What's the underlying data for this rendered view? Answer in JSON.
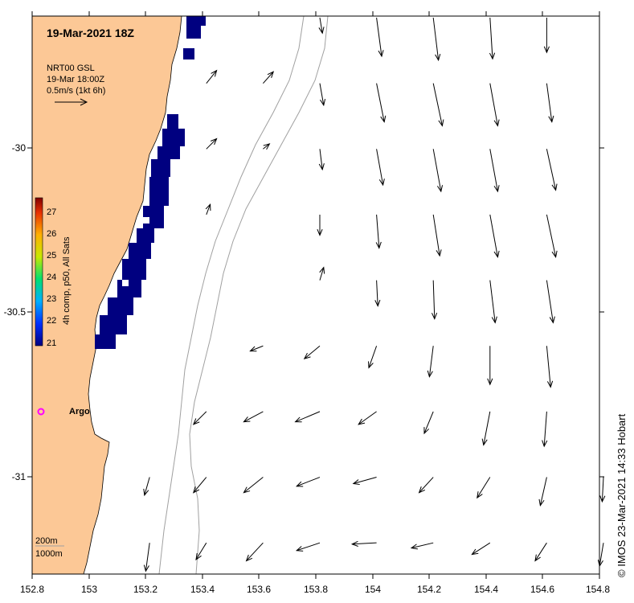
{
  "map": {
    "title": "19-Mar-2021 18Z",
    "product_line1": "NRT00 GSL",
    "product_line2": "19-Mar 18:00Z",
    "scale_label": "0.5m/s (1kt 6h)",
    "colorbar_label": "4h comp, p50, All Sats",
    "colorbar_ticks": [
      "27",
      "26",
      "25",
      "24",
      "23",
      "22",
      "21"
    ],
    "x_ticks": [
      "152.8",
      "153",
      "153.2",
      "153.4",
      "153.6",
      "153.8",
      "154",
      "154.2",
      "154.4",
      "154.6",
      "154.8"
    ],
    "y_ticks": [
      "-30",
      "-30.5",
      "-31"
    ],
    "argo_label": "Argo",
    "depth_label_200": "200m",
    "depth_label_1000": "1000m",
    "credit": "© IMOS 23-Mar-2021 14:33 Hobart",
    "colors": {
      "land": "#fcc896",
      "sst_low": "#000080",
      "argo": "#ff00ff",
      "contour": "#a0a0a0"
    }
  },
  "chart_data": {
    "type": "vector-field-map",
    "lon_range": [
      152.8,
      154.8
    ],
    "lat_range": [
      -31.3,
      -29.6
    ],
    "sst_colorbar_range": [
      21,
      27
    ],
    "argo_float": {
      "lon": 152.83,
      "lat": -30.81
    },
    "current_vectors_ms": [
      {
        "lon": 153.8,
        "lat": -29.6,
        "u": 0.02,
        "v": -0.12
      },
      {
        "lon": 154.0,
        "lat": -29.6,
        "u": 0.04,
        "v": -0.3
      },
      {
        "lon": 154.2,
        "lat": -29.6,
        "u": 0.04,
        "v": -0.33
      },
      {
        "lon": 154.4,
        "lat": -29.6,
        "u": 0.02,
        "v": -0.32
      },
      {
        "lon": 154.6,
        "lat": -29.6,
        "u": 0.0,
        "v": -0.27
      },
      {
        "lon": 153.4,
        "lat": -29.8,
        "u": 0.08,
        "v": 0.1
      },
      {
        "lon": 153.6,
        "lat": -29.8,
        "u": 0.08,
        "v": 0.09
      },
      {
        "lon": 153.8,
        "lat": -29.8,
        "u": 0.03,
        "v": -0.17
      },
      {
        "lon": 154.0,
        "lat": -29.8,
        "u": 0.06,
        "v": -0.3
      },
      {
        "lon": 154.2,
        "lat": -29.8,
        "u": 0.07,
        "v": -0.33
      },
      {
        "lon": 154.4,
        "lat": -29.8,
        "u": 0.06,
        "v": -0.33
      },
      {
        "lon": 154.6,
        "lat": -29.8,
        "u": 0.04,
        "v": -0.3
      },
      {
        "lon": 153.4,
        "lat": -30.0,
        "u": 0.08,
        "v": 0.08
      },
      {
        "lon": 153.6,
        "lat": -30.0,
        "u": 0.05,
        "v": 0.04
      },
      {
        "lon": 153.8,
        "lat": -30.0,
        "u": 0.02,
        "v": -0.16
      },
      {
        "lon": 154.0,
        "lat": -30.0,
        "u": 0.05,
        "v": -0.28
      },
      {
        "lon": 154.2,
        "lat": -30.0,
        "u": 0.06,
        "v": -0.33
      },
      {
        "lon": 154.4,
        "lat": -30.0,
        "u": 0.06,
        "v": -0.33
      },
      {
        "lon": 154.6,
        "lat": -30.0,
        "u": 0.07,
        "v": -0.32
      },
      {
        "lon": 153.4,
        "lat": -30.2,
        "u": 0.03,
        "v": 0.08
      },
      {
        "lon": 153.8,
        "lat": -30.2,
        "u": 0.0,
        "v": -0.16
      },
      {
        "lon": 154.0,
        "lat": -30.2,
        "u": 0.02,
        "v": -0.26
      },
      {
        "lon": 154.2,
        "lat": -30.2,
        "u": 0.05,
        "v": -0.32
      },
      {
        "lon": 154.4,
        "lat": -30.2,
        "u": 0.06,
        "v": -0.33
      },
      {
        "lon": 154.6,
        "lat": -30.2,
        "u": 0.07,
        "v": -0.33
      },
      {
        "lon": 153.8,
        "lat": -30.4,
        "u": 0.03,
        "v": 0.1
      },
      {
        "lon": 154.0,
        "lat": -30.4,
        "u": 0.01,
        "v": -0.2
      },
      {
        "lon": 154.2,
        "lat": -30.4,
        "u": 0.01,
        "v": -0.3
      },
      {
        "lon": 154.4,
        "lat": -30.4,
        "u": 0.04,
        "v": -0.33
      },
      {
        "lon": 154.6,
        "lat": -30.4,
        "u": 0.05,
        "v": -0.33
      },
      {
        "lon": 153.6,
        "lat": -30.6,
        "u": -0.1,
        "v": -0.04
      },
      {
        "lon": 153.8,
        "lat": -30.6,
        "u": -0.12,
        "v": -0.1
      },
      {
        "lon": 154.0,
        "lat": -30.6,
        "u": -0.06,
        "v": -0.17
      },
      {
        "lon": 154.2,
        "lat": -30.6,
        "u": -0.03,
        "v": -0.24
      },
      {
        "lon": 154.4,
        "lat": -30.6,
        "u": 0.0,
        "v": -0.3
      },
      {
        "lon": 154.6,
        "lat": -30.6,
        "u": 0.03,
        "v": -0.32
      },
      {
        "lon": 153.4,
        "lat": -30.8,
        "u": -0.1,
        "v": -0.1
      },
      {
        "lon": 153.6,
        "lat": -30.8,
        "u": -0.15,
        "v": -0.08
      },
      {
        "lon": 153.8,
        "lat": -30.8,
        "u": -0.19,
        "v": -0.08
      },
      {
        "lon": 154.0,
        "lat": -30.8,
        "u": -0.14,
        "v": -0.1
      },
      {
        "lon": 154.2,
        "lat": -30.8,
        "u": -0.07,
        "v": -0.17
      },
      {
        "lon": 154.4,
        "lat": -30.8,
        "u": -0.05,
        "v": -0.26
      },
      {
        "lon": 154.6,
        "lat": -30.8,
        "u": -0.02,
        "v": -0.27
      },
      {
        "lon": 153.2,
        "lat": -31.0,
        "u": -0.04,
        "v": -0.14
      },
      {
        "lon": 153.4,
        "lat": -31.0,
        "u": -0.1,
        "v": -0.12
      },
      {
        "lon": 153.6,
        "lat": -31.0,
        "u": -0.15,
        "v": -0.12
      },
      {
        "lon": 153.8,
        "lat": -31.0,
        "u": -0.18,
        "v": -0.07
      },
      {
        "lon": 154.0,
        "lat": -31.0,
        "u": -0.18,
        "v": -0.05
      },
      {
        "lon": 154.2,
        "lat": -31.0,
        "u": -0.11,
        "v": -0.12
      },
      {
        "lon": 154.4,
        "lat": -31.0,
        "u": -0.1,
        "v": -0.16
      },
      {
        "lon": 154.6,
        "lat": -31.0,
        "u": -0.05,
        "v": -0.22
      },
      {
        "lon": 154.8,
        "lat": -31.0,
        "u": -0.01,
        "v": -0.19
      },
      {
        "lon": 153.2,
        "lat": -31.2,
        "u": -0.03,
        "v": -0.22
      },
      {
        "lon": 153.4,
        "lat": -31.2,
        "u": -0.08,
        "v": -0.13
      },
      {
        "lon": 153.6,
        "lat": -31.2,
        "u": -0.13,
        "v": -0.14
      },
      {
        "lon": 153.8,
        "lat": -31.2,
        "u": -0.18,
        "v": -0.06
      },
      {
        "lon": 154.0,
        "lat": -31.2,
        "u": -0.19,
        "v": -0.01
      },
      {
        "lon": 154.2,
        "lat": -31.2,
        "u": -0.17,
        "v": -0.04
      },
      {
        "lon": 154.4,
        "lat": -31.2,
        "u": -0.14,
        "v": -0.09
      },
      {
        "lon": 154.6,
        "lat": -31.2,
        "u": -0.09,
        "v": -0.14
      },
      {
        "lon": 154.8,
        "lat": -31.2,
        "u": -0.03,
        "v": -0.18
      }
    ]
  }
}
